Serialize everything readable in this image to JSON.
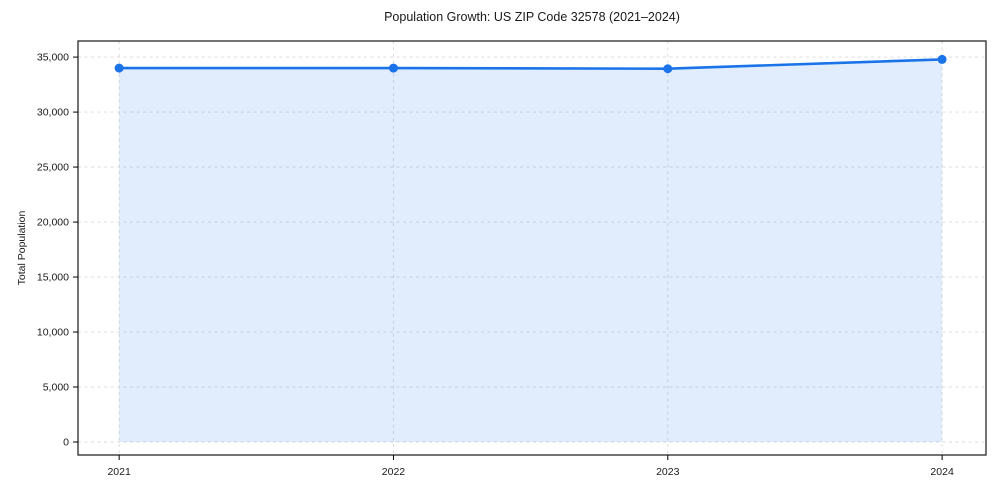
{
  "chart_data": {
    "type": "area",
    "title": "Population Growth: US ZIP Code 32578 (2021–2024)",
    "xlabel": "",
    "ylabel": "Total Population",
    "x": [
      2021,
      2022,
      2023,
      2024
    ],
    "series": [
      {
        "name": "Total Population",
        "values": [
          34000,
          34000,
          33940,
          34790
        ]
      }
    ],
    "xtick_labels": [
      "2021",
      "2022",
      "2023",
      "2024"
    ],
    "yticks": [
      0,
      5000,
      10000,
      15000,
      20000,
      25000,
      30000,
      35000
    ],
    "ytick_labels": [
      "0",
      "5,000",
      "10,000",
      "15,000",
      "20,000",
      "25,000",
      "30,000",
      "35,000"
    ],
    "xlim": [
      2020.85,
      2024.16
    ],
    "ylim": [
      -1182,
      36463
    ],
    "fill_baseline": 0,
    "grid": "dashed-both-axes",
    "legend": "none",
    "marker": "circle",
    "colors": {
      "line": "#1a73e8",
      "marker": "#1a73e8",
      "fill": "rgba(26,115,232,0.13)",
      "grid": "#d9d9d9",
      "spine": "#000000",
      "text": "#1a1a1a"
    }
  }
}
